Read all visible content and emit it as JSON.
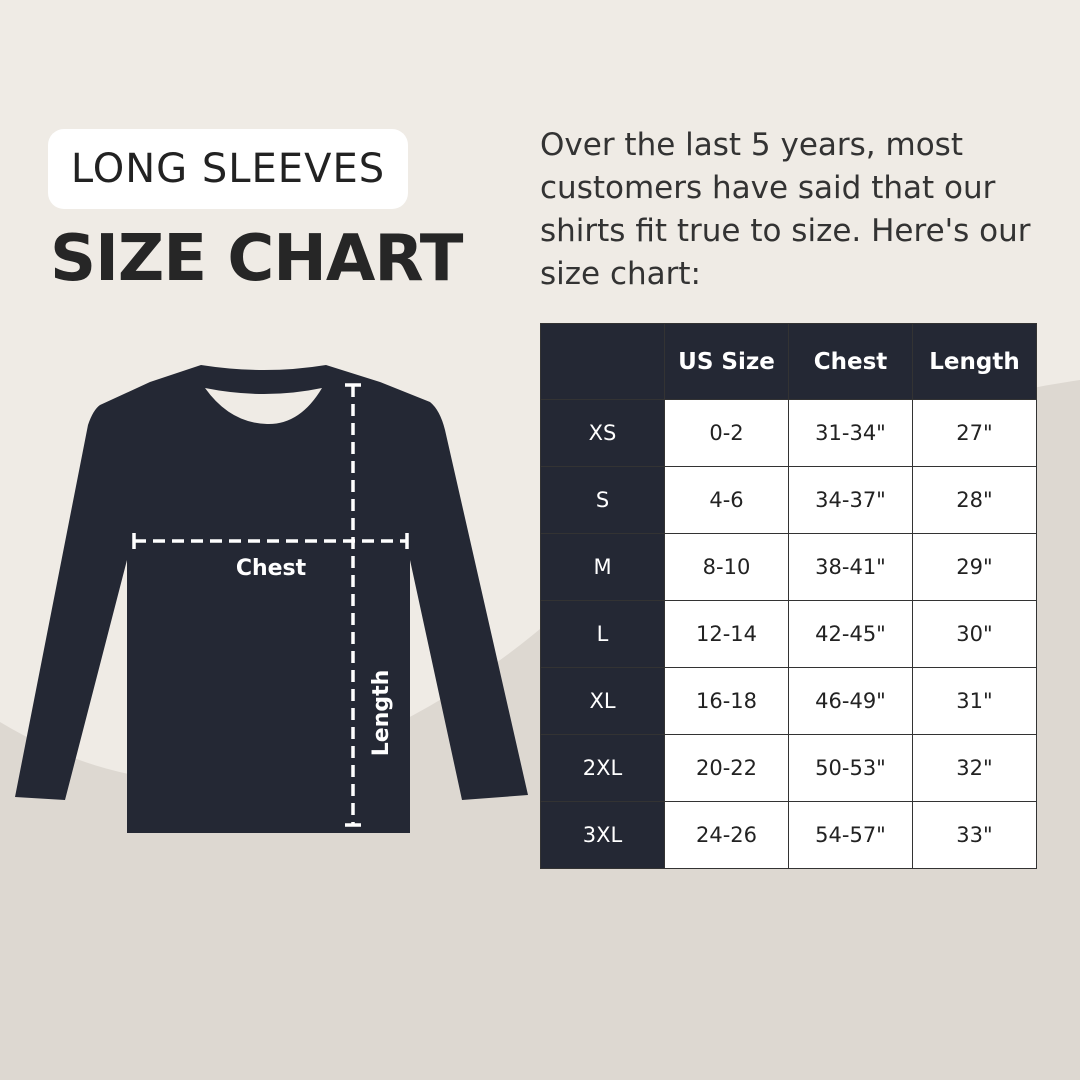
{
  "header": {
    "badge": "LONG SLEEVES",
    "title": "SIZE CHART"
  },
  "intro": "Over the last 5 years, most customers have said that our shirts fit true to size. Here's our size chart:",
  "diagram": {
    "chest_label": "Chest",
    "length_label": "Length"
  },
  "table": {
    "columns": [
      "",
      "US Size",
      "Chest",
      "Length"
    ],
    "rows": [
      [
        "XS",
        "0-2",
        "31-34\"",
        "27\""
      ],
      [
        "S",
        "4-6",
        "34-37\"",
        "28\""
      ],
      [
        "M",
        "8-10",
        "38-41\"",
        "29\""
      ],
      [
        "L",
        "12-14",
        "42-45\"",
        "30\""
      ],
      [
        "XL",
        "16-18",
        "46-49\"",
        "31\""
      ],
      [
        "2XL",
        "20-22",
        "50-53\"",
        "32\""
      ],
      [
        "3XL",
        "24-26",
        "54-57\"",
        "33\""
      ]
    ]
  },
  "colors": {
    "background": "#efebe5",
    "background_lower": "#ddd8d1",
    "shirt": "#242834",
    "header_cell": "#242834"
  }
}
